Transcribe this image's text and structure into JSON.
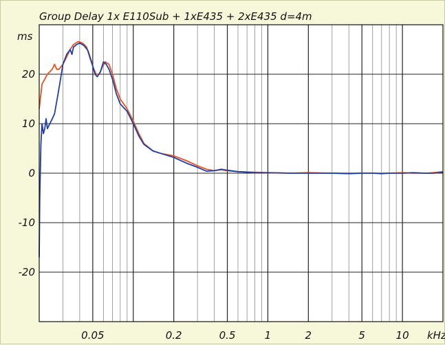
{
  "chart_data": {
    "type": "line",
    "title": "Group Delay 1x E110Sub + 1xE435 + 2xE435 d=4m",
    "ylabel": "ms",
    "xunit": "kHz",
    "xscale": "log",
    "xlim": [
      0.02,
      20
    ],
    "ylim": [
      -30,
      30
    ],
    "grid": true,
    "yticks": [
      {
        "value": 20,
        "label": "20"
      },
      {
        "value": 10,
        "label": "10"
      },
      {
        "value": 0,
        "label": "0"
      },
      {
        "value": -10,
        "label": "-10"
      },
      {
        "value": -20,
        "label": "-20"
      }
    ],
    "xticks": [
      {
        "value": 0.05,
        "label": "0.05"
      },
      {
        "value": 0.2,
        "label": "0.2"
      },
      {
        "value": 0.5,
        "label": "0.5"
      },
      {
        "value": 1,
        "label": "1"
      },
      {
        "value": 2,
        "label": "2"
      },
      {
        "value": 5,
        "label": "5"
      },
      {
        "value": 10,
        "label": "10"
      }
    ],
    "series": [
      {
        "color": "#e8501e",
        "points": [
          [
            0.02,
            13
          ],
          [
            0.021,
            18
          ],
          [
            0.022,
            19
          ],
          [
            0.023,
            20
          ],
          [
            0.025,
            21
          ],
          [
            0.026,
            22
          ],
          [
            0.027,
            21
          ],
          [
            0.028,
            21
          ],
          [
            0.03,
            22
          ],
          [
            0.032,
            23.5
          ],
          [
            0.034,
            25
          ],
          [
            0.036,
            26
          ],
          [
            0.039,
            26.6
          ],
          [
            0.042,
            26.3
          ],
          [
            0.045,
            25.5
          ],
          [
            0.048,
            23
          ],
          [
            0.051,
            21
          ],
          [
            0.053,
            20
          ],
          [
            0.056,
            20
          ],
          [
            0.059,
            21.5
          ],
          [
            0.062,
            22.5
          ],
          [
            0.066,
            22
          ],
          [
            0.07,
            20
          ],
          [
            0.075,
            17
          ],
          [
            0.08,
            15
          ],
          [
            0.09,
            13
          ],
          [
            0.1,
            10.5
          ],
          [
            0.11,
            8
          ],
          [
            0.12,
            6
          ],
          [
            0.14,
            4.5
          ],
          [
            0.16,
            4
          ],
          [
            0.2,
            3.5
          ],
          [
            0.25,
            2.5
          ],
          [
            0.3,
            1.5
          ],
          [
            0.35,
            0.8
          ],
          [
            0.4,
            0.5
          ],
          [
            0.45,
            0.7
          ],
          [
            0.5,
            0.5
          ],
          [
            0.6,
            0.3
          ],
          [
            0.8,
            0.2
          ],
          [
            1,
            0.1
          ],
          [
            1.5,
            0
          ],
          [
            2,
            0.1
          ],
          [
            3,
            0
          ],
          [
            4,
            0
          ],
          [
            5,
            0
          ],
          [
            6,
            0
          ],
          [
            7,
            0
          ],
          [
            8,
            0
          ],
          [
            10,
            0.1
          ],
          [
            12,
            0
          ],
          [
            15,
            0
          ],
          [
            17,
            0.1
          ],
          [
            20,
            0.3
          ]
        ]
      },
      {
        "color": "#1f3ea6",
        "points": [
          [
            0.02,
            -17
          ],
          [
            0.0202,
            -5
          ],
          [
            0.0206,
            6
          ],
          [
            0.021,
            10
          ],
          [
            0.0215,
            8
          ],
          [
            0.022,
            9
          ],
          [
            0.0225,
            11
          ],
          [
            0.023,
            9
          ],
          [
            0.025,
            11
          ],
          [
            0.026,
            12
          ],
          [
            0.028,
            17
          ],
          [
            0.03,
            22
          ],
          [
            0.032,
            24
          ],
          [
            0.034,
            25
          ],
          [
            0.035,
            24
          ],
          [
            0.036,
            25.5
          ],
          [
            0.038,
            26
          ],
          [
            0.04,
            26.3
          ],
          [
            0.043,
            25.8
          ],
          [
            0.046,
            24.8
          ],
          [
            0.049,
            22.5
          ],
          [
            0.052,
            20
          ],
          [
            0.054,
            19.5
          ],
          [
            0.057,
            20.5
          ],
          [
            0.06,
            22.5
          ],
          [
            0.063,
            22
          ],
          [
            0.066,
            21
          ],
          [
            0.07,
            19
          ],
          [
            0.075,
            16
          ],
          [
            0.08,
            14
          ],
          [
            0.09,
            12.5
          ],
          [
            0.1,
            10
          ],
          [
            0.11,
            7.5
          ],
          [
            0.12,
            5.8
          ],
          [
            0.14,
            4.5
          ],
          [
            0.16,
            4
          ],
          [
            0.2,
            3.2
          ],
          [
            0.25,
            2
          ],
          [
            0.3,
            1.2
          ],
          [
            0.35,
            0.4
          ],
          [
            0.4,
            0.5
          ],
          [
            0.45,
            0.8
          ],
          [
            0.5,
            0.6
          ],
          [
            0.6,
            0.3
          ],
          [
            0.8,
            0.1
          ],
          [
            1,
            0.1
          ],
          [
            1.5,
            0
          ],
          [
            2,
            0
          ],
          [
            3,
            0
          ],
          [
            4,
            -0.1
          ],
          [
            5,
            0
          ],
          [
            6,
            0
          ],
          [
            7,
            -0.1
          ],
          [
            8,
            0
          ],
          [
            10,
            0
          ],
          [
            12,
            0.1
          ],
          [
            15,
            0
          ],
          [
            17,
            0
          ],
          [
            20,
            0.2
          ]
        ]
      }
    ]
  }
}
